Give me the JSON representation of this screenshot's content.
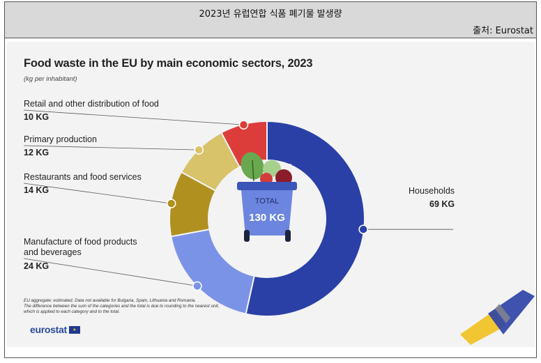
{
  "header": {
    "title": "2023년 유럽연합 식품 폐기물 발생량",
    "source": "출처: Eurostat"
  },
  "colors": {
    "households": "#2a40a6",
    "manufacture": "#7b93e6",
    "restaurants": "#b0911f",
    "primary": "#d8c26a",
    "retail": "#dc3d3a"
  },
  "chart_data": {
    "type": "pie",
    "title": "Food waste in the EU by main economic sectors, 2023",
    "subtitle": "(kg per inhabitant)",
    "unit": "kg per inhabitant",
    "total_label": "TOTAL",
    "total_value": "130 KG",
    "slices": [
      {
        "name": "Households",
        "value": 69,
        "value_label": "69 KG",
        "color": "#2a40a6"
      },
      {
        "name": "Manufacture of food products and beverages",
        "name_lines": [
          "Manufacture of food products",
          "and beverages"
        ],
        "value": 24,
        "value_label": "24 KG",
        "color": "#7b93e6"
      },
      {
        "name": "Restaurants and food services",
        "value": 14,
        "value_label": "14 KG",
        "color": "#b0911f"
      },
      {
        "name": "Primary production",
        "value": 12,
        "value_label": "12 KG",
        "color": "#d8c26a"
      },
      {
        "name": "Retail and other distribution of food",
        "value": 10,
        "value_label": "10 KG",
        "color": "#dc3d3a"
      }
    ],
    "legend": "none",
    "donut": true
  },
  "footnote": [
    "EU aggregate: estimated. Data not available for Bulgaria, Spain, Lithuania and Romania.",
    "The difference between the sum of the categories and the total is due to rounding to the nearest unit,",
    "which is applied to each category and to the total."
  ],
  "logo": {
    "text": "eurostat",
    "icon": "eu-flag-icon"
  },
  "decor": {
    "icon": "bin-with-food-icon",
    "corner_icon": "eurostat-swoosh-icon"
  }
}
